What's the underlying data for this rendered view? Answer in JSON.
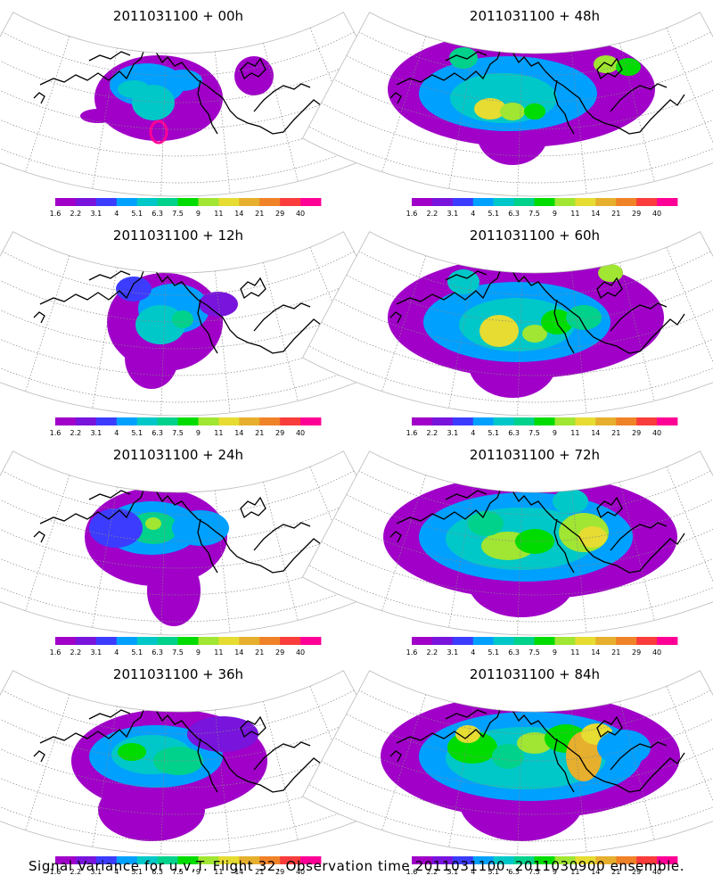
{
  "panels": [
    {
      "title": "2011031100 + 00h",
      "stage": 0
    },
    {
      "title": "2011031100 + 48h",
      "stage": 4
    },
    {
      "title": "2011031100 + 12h",
      "stage": 1
    },
    {
      "title": "2011031100 + 60h",
      "stage": 5
    },
    {
      "title": "2011031100 + 24h",
      "stage": 2
    },
    {
      "title": "2011031100 + 72h",
      "stage": 6
    },
    {
      "title": "2011031100 + 36h",
      "stage": 3
    },
    {
      "title": "2011031100 + 84h",
      "stage": 7
    }
  ],
  "colorbar": {
    "labels": [
      "1.6",
      "2.2",
      "3.1",
      "4",
      "5.1",
      "6.3",
      "7.5",
      "9",
      "11",
      "14",
      "21",
      "29",
      "40"
    ],
    "colors": [
      "#a000c8",
      "#7814dc",
      "#3c3cff",
      "#00a0ff",
      "#00c8c8",
      "#00d28c",
      "#00dc00",
      "#a0e632",
      "#e6dc32",
      "#e6af2d",
      "#f08228",
      "#fa3c3c",
      "#ff0096"
    ]
  },
  "caption": "Signal Variance for u,v,T. Flight 32. Observation time 2011031100. 2011030900 ensemble."
}
